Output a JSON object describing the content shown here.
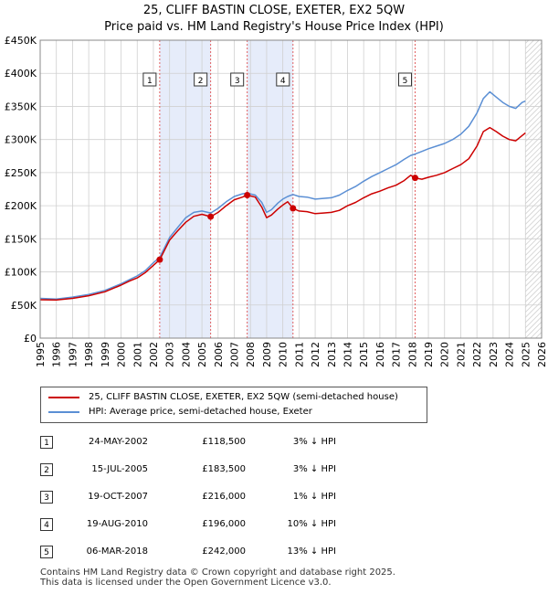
{
  "header": {
    "title": "25, CLIFF BASTIN CLOSE, EXETER, EX2 5QW",
    "subtitle": "Price paid vs. HM Land Registry's House Price Index (HPI)"
  },
  "colors": {
    "price_line": "#cc0000",
    "hpi_line": "#5b8fd4",
    "shade": "#e6ecfa",
    "grid": "#d0d0d0",
    "vline": "#e05050",
    "marker": "#cc0000"
  },
  "chart_data": {
    "type": "line",
    "title": "25, CLIFF BASTIN CLOSE, EXETER, EX2 5QW",
    "xlim": [
      1995,
      2026
    ],
    "ylim": [
      0,
      450000
    ],
    "x_ticks": [
      1995,
      1996,
      1997,
      1998,
      1999,
      2000,
      2001,
      2002,
      2003,
      2004,
      2005,
      2006,
      2007,
      2008,
      2009,
      2010,
      2011,
      2012,
      2013,
      2014,
      2015,
      2016,
      2017,
      2018,
      2019,
      2020,
      2021,
      2022,
      2023,
      2024,
      2025,
      2026
    ],
    "y_ticks": [
      {
        "value": 0,
        "label": "£0"
      },
      {
        "value": 50000,
        "label": "£50K"
      },
      {
        "value": 100000,
        "label": "£100K"
      },
      {
        "value": 150000,
        "label": "£150K"
      },
      {
        "value": 200000,
        "label": "£200K"
      },
      {
        "value": 250000,
        "label": "£250K"
      },
      {
        "value": 300000,
        "label": "£300K"
      },
      {
        "value": 350000,
        "label": "£350K"
      },
      {
        "value": 400000,
        "label": "£400K"
      },
      {
        "value": 450000,
        "label": "£450K"
      }
    ],
    "shaded_ranges": [
      [
        2002.39,
        2005.54
      ],
      [
        2007.8,
        2010.63
      ]
    ],
    "future_from": 2025.0,
    "series": [
      {
        "name": "25, CLIFF BASTIN CLOSE, EXETER, EX2 5QW (semi-detached house)",
        "x": [
          1995.0,
          1996.0,
          1997.0,
          1998.0,
          1999.0,
          2000.0,
          2000.5,
          2001.0,
          2001.5,
          2002.0,
          2002.39,
          2003.0,
          2003.5,
          2004.0,
          2004.5,
          2005.0,
          2005.54,
          2006.0,
          2006.5,
          2007.0,
          2007.5,
          2007.8,
          2008.3,
          2008.7,
          2009.0,
          2009.3,
          2009.7,
          2010.0,
          2010.3,
          2010.63,
          2011.0,
          2011.5,
          2012.0,
          2012.5,
          2013.0,
          2013.5,
          2014.0,
          2014.5,
          2015.0,
          2015.5,
          2016.0,
          2016.5,
          2017.0,
          2017.5,
          2017.9,
          2018.18,
          2018.6,
          2019.0,
          2019.5,
          2020.0,
          2020.5,
          2021.0,
          2021.5,
          2022.0,
          2022.4,
          2022.8,
          2023.2,
          2023.6,
          2024.0,
          2024.4,
          2024.8,
          2025.0
        ],
        "values": [
          58000,
          57500,
          60000,
          64000,
          70000,
          80000,
          86000,
          91000,
          99000,
          110000,
          118500,
          148000,
          162000,
          175000,
          184000,
          187000,
          183500,
          190000,
          200000,
          209000,
          213000,
          216000,
          213000,
          198000,
          182000,
          186000,
          195000,
          201000,
          206000,
          196000,
          192000,
          191000,
          188000,
          189000,
          190000,
          193000,
          200000,
          205000,
          212000,
          218000,
          222000,
          227000,
          231000,
          238000,
          246000,
          242000,
          240000,
          243000,
          246000,
          250000,
          256000,
          262000,
          271000,
          290000,
          312000,
          318000,
          312000,
          305000,
          300000,
          298000,
          306000,
          310000
        ]
      },
      {
        "name": "HPI: Average price, semi-detached house, Exeter",
        "x": [
          1995.0,
          1996.0,
          1997.0,
          1998.0,
          1999.0,
          2000.0,
          2000.5,
          2001.0,
          2001.5,
          2002.0,
          2002.39,
          2003.0,
          2003.5,
          2004.0,
          2004.5,
          2005.0,
          2005.54,
          2006.0,
          2006.5,
          2007.0,
          2007.5,
          2007.8,
          2008.3,
          2008.7,
          2009.0,
          2009.3,
          2009.7,
          2010.0,
          2010.3,
          2010.63,
          2011.0,
          2011.5,
          2012.0,
          2012.5,
          2013.0,
          2013.5,
          2014.0,
          2014.5,
          2015.0,
          2015.5,
          2016.0,
          2016.5,
          2017.0,
          2017.5,
          2017.9,
          2018.18,
          2018.6,
          2019.0,
          2019.5,
          2020.0,
          2020.5,
          2021.0,
          2021.5,
          2022.0,
          2022.4,
          2022.8,
          2023.2,
          2023.6,
          2024.0,
          2024.4,
          2024.8,
          2025.0
        ],
        "values": [
          60000,
          59000,
          62000,
          66000,
          72000,
          82000,
          88000,
          94000,
          102000,
          114000,
          122000,
          152000,
          167000,
          182000,
          190000,
          192000,
          189000,
          196000,
          206000,
          214000,
          218000,
          219000,
          216000,
          205000,
          190000,
          194000,
          204000,
          210000,
          214000,
          217000,
          214000,
          213000,
          210000,
          211000,
          212000,
          216000,
          223000,
          229000,
          237000,
          244000,
          250000,
          256000,
          262000,
          270000,
          276000,
          278000,
          282000,
          286000,
          290000,
          294000,
          300000,
          308000,
          320000,
          340000,
          362000,
          372000,
          364000,
          356000,
          350000,
          347000,
          356000,
          358000
        ]
      }
    ],
    "sale_markers": [
      {
        "label": "1",
        "x": 2002.39,
        "value": 118500
      },
      {
        "label": "2",
        "x": 2005.54,
        "value": 183500
      },
      {
        "label": "3",
        "x": 2007.8,
        "value": 216000
      },
      {
        "label": "4",
        "x": 2010.63,
        "value": 196000
      },
      {
        "label": "5",
        "x": 2018.18,
        "value": 242000
      }
    ]
  },
  "legend": {
    "items": [
      {
        "label": "25, CLIFF BASTIN CLOSE, EXETER, EX2 5QW (semi-detached house)",
        "color": "#cc0000"
      },
      {
        "label": "HPI: Average price, semi-detached house, Exeter",
        "color": "#5b8fd4"
      }
    ]
  },
  "sales": [
    {
      "num": "1",
      "date": "24-MAY-2002",
      "price": "£118,500",
      "hpi": "3% ↓ HPI"
    },
    {
      "num": "2",
      "date": "15-JUL-2005",
      "price": "£183,500",
      "hpi": "3% ↓ HPI"
    },
    {
      "num": "3",
      "date": "19-OCT-2007",
      "price": "£216,000",
      "hpi": "1% ↓ HPI"
    },
    {
      "num": "4",
      "date": "19-AUG-2010",
      "price": "£196,000",
      "hpi": "10% ↓ HPI"
    },
    {
      "num": "5",
      "date": "06-MAR-2018",
      "price": "£242,000",
      "hpi": "13% ↓ HPI"
    }
  ],
  "footer": {
    "line1": "Contains HM Land Registry data © Crown copyright and database right 2025.",
    "line2": "This data is licensed under the Open Government Licence v3.0."
  }
}
